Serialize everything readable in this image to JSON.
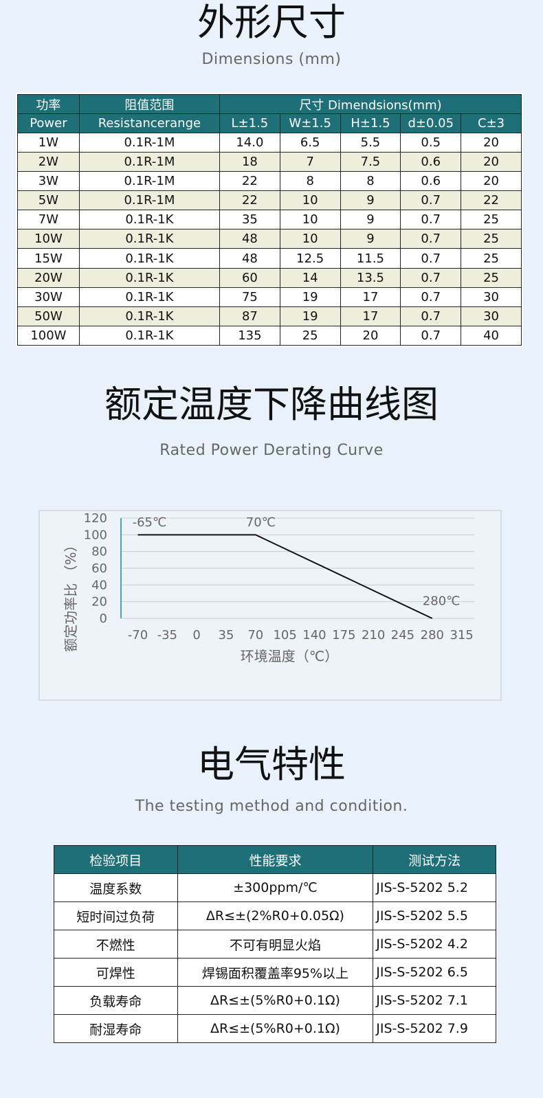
{
  "dimensions": {
    "title": "外形尺寸",
    "subtitle": "Dimensions (mm)",
    "header": {
      "power_cn": "功率",
      "power_en": "Power",
      "res_cn": "阻值范围",
      "res_en": "Resistancerange",
      "size": "尺寸 Dimendsions(mm)",
      "cols": [
        "L±1.5",
        "W±1.5",
        "H±1.5",
        "d±0.05",
        "C±3"
      ]
    },
    "rows": [
      [
        "1W",
        "0.1R-1M",
        "14.0",
        "6.5",
        "5.5",
        "0.5",
        "20"
      ],
      [
        "2W",
        "0.1R-1M",
        "18",
        "7",
        "7.5",
        "0.6",
        "20"
      ],
      [
        "3W",
        "0.1R-1M",
        "22",
        "8",
        "8",
        "0.6",
        "20"
      ],
      [
        "5W",
        "0.1R-1M",
        "22",
        "10",
        "9",
        "0.7",
        "22"
      ],
      [
        "7W",
        "0.1R-1K",
        "35",
        "10",
        "9",
        "0.7",
        "25"
      ],
      [
        "10W",
        "0.1R-1K",
        "48",
        "10",
        "9",
        "0.7",
        "25"
      ],
      [
        "15W",
        "0.1R-1K",
        "48",
        "12.5",
        "11.5",
        "0.7",
        "25"
      ],
      [
        "20W",
        "0.1R-1K",
        "60",
        "14",
        "13.5",
        "0.7",
        "25"
      ],
      [
        "30W",
        "0.1R-1K",
        "75",
        "19",
        "17",
        "0.7",
        "30"
      ],
      [
        "50W",
        "0.1R-1K",
        "87",
        "19",
        "17",
        "0.7",
        "30"
      ],
      [
        "100W",
        "0.1R-1K",
        "135",
        "25",
        "20",
        "0.7",
        "40"
      ]
    ]
  },
  "derating": {
    "title": "额定温度下降曲线图",
    "subtitle": "Rated Power Derating Curve"
  },
  "chart_data": {
    "type": "line",
    "title": "",
    "xlabel": "环境温度（℃）",
    "ylabel": "额定功率比 （%）",
    "xlim": [
      -90,
      330
    ],
    "ylim": [
      0,
      120
    ],
    "x_ticks": [
      "-70",
      "-35",
      "0",
      "35",
      "70",
      "105",
      "140",
      "175",
      "210",
      "245",
      "280",
      "315"
    ],
    "y_ticks": [
      "0",
      "20",
      "40",
      "60",
      "80",
      "100",
      "120"
    ],
    "series": [
      {
        "x": [
          -70,
          70,
          280
        ],
        "y": [
          100,
          100,
          0
        ]
      }
    ],
    "annotations": [
      {
        "text": "-65℃",
        "x": -65,
        "y": 120
      },
      {
        "text": "70℃",
        "x": 70,
        "y": 120
      },
      {
        "text": "280℃",
        "x": 280,
        "y": 26
      }
    ],
    "grid": true,
    "line_color": "#111111",
    "y_axis_color": "#4aa3df"
  },
  "electrical": {
    "title": "电气特性",
    "subtitle": "The testing method and condition.",
    "header": [
      "检验项目",
      "性能要求",
      "测试方法"
    ],
    "rows": [
      [
        "温度系数",
        "±300ppm/℃",
        "JIS-S-5202 5.2"
      ],
      [
        "短时间过负荷",
        "ΔR≤±(2%R0+0.05Ω)",
        "JIS-S-5202 5.5"
      ],
      [
        "不燃性",
        "不可有明显火焰",
        "JIS-S-5202 4.2"
      ],
      [
        "可焊性",
        "焊锡面积覆盖率95%以上",
        "JIS-S-5202 6.5"
      ],
      [
        "负载寿命",
        "ΔR≤±(5%R0+0.1Ω)",
        "JIS-S-5202 7.1"
      ],
      [
        "耐湿寿命",
        "ΔR≤±(5%R0+0.1Ω)",
        "JIS-S-5202 7.9"
      ]
    ]
  }
}
